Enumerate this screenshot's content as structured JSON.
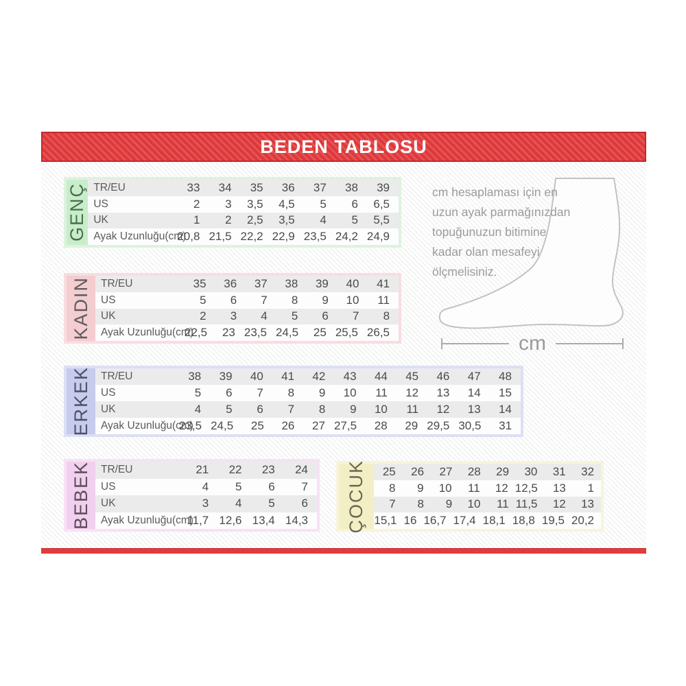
{
  "title_banner": "BEDEN TABLOSU",
  "row_headers": [
    "TR/EU",
    "US",
    "UK",
    "Ayak Uzunluğu(cm)"
  ],
  "sections": [
    {
      "id": "genc",
      "label": "GENÇ",
      "show_row_headers": true,
      "rows": [
        [
          "33",
          "34",
          "35",
          "36",
          "37",
          "38",
          "39"
        ],
        [
          "2",
          "3",
          "3,5",
          "4,5",
          "5",
          "6",
          "6,5"
        ],
        [
          "1",
          "2",
          "2,5",
          "3,5",
          "4",
          "5",
          "5,5"
        ],
        [
          "20,8",
          "21,5",
          "22,2",
          "22,9",
          "23,5",
          "24,2",
          "24,9"
        ]
      ]
    },
    {
      "id": "kadin",
      "label": "KADIN",
      "show_row_headers": true,
      "rows": [
        [
          "35",
          "36",
          "37",
          "38",
          "39",
          "40",
          "41"
        ],
        [
          "5",
          "6",
          "7",
          "8",
          "9",
          "10",
          "11"
        ],
        [
          "2",
          "3",
          "4",
          "5",
          "6",
          "7",
          "8"
        ],
        [
          "22,5",
          "23",
          "23,5",
          "24,5",
          "25",
          "25,5",
          "26,5"
        ]
      ]
    },
    {
      "id": "erkek",
      "label": "ERKEK",
      "show_row_headers": true,
      "rows": [
        [
          "38",
          "39",
          "40",
          "41",
          "42",
          "43",
          "44",
          "45",
          "46",
          "47",
          "48"
        ],
        [
          "5",
          "6",
          "7",
          "8",
          "9",
          "10",
          "11",
          "12",
          "13",
          "14",
          "15"
        ],
        [
          "4",
          "5",
          "6",
          "7",
          "8",
          "9",
          "10",
          "11",
          "12",
          "13",
          "14"
        ],
        [
          "23,5",
          "24,5",
          "25",
          "26",
          "27",
          "27,5",
          "28",
          "29",
          "29,5",
          "30,5",
          "31"
        ]
      ]
    },
    {
      "id": "bebek",
      "label": "BEBEK",
      "show_row_headers": true,
      "rows": [
        [
          "21",
          "22",
          "23",
          "24"
        ],
        [
          "4",
          "5",
          "6",
          "7"
        ],
        [
          "3",
          "4",
          "5",
          "6"
        ],
        [
          "11,7",
          "12,6",
          "13,4",
          "14,3"
        ]
      ]
    },
    {
      "id": "cocuk",
      "label": "ÇOCUK",
      "show_row_headers": false,
      "rows": [
        [
          "25",
          "26",
          "27",
          "28",
          "29",
          "30",
          "31",
          "32"
        ],
        [
          "8",
          "9",
          "10",
          "11",
          "12",
          "12,5",
          "13",
          "1"
        ],
        [
          "7",
          "8",
          "9",
          "10",
          "11",
          "11,5",
          "12",
          "13"
        ],
        [
          "15,1",
          "16",
          "16,7",
          "17,4",
          "18,1",
          "18,8",
          "19,5",
          "20,2"
        ]
      ]
    }
  ],
  "instruction": {
    "lines": [
      "cm hesaplaması için en",
      "uzun ayak parmağınızdan",
      "topuğunuzun bitimine",
      "kadar olan mesafeyi",
      "ölçmelisiniz."
    ]
  },
  "measure_label": "cm",
  "colors": {
    "banner_red": "#e23b3e",
    "banner_border": "#c4282c",
    "genc_band": "#c9edcb",
    "kadin_band": "#f4cdd1",
    "erkek_band": "#c7cbec",
    "bebek_band": "#f1cfee",
    "cocuk_band": "#f2efc5",
    "row_stripe": "#ebebeb"
  }
}
